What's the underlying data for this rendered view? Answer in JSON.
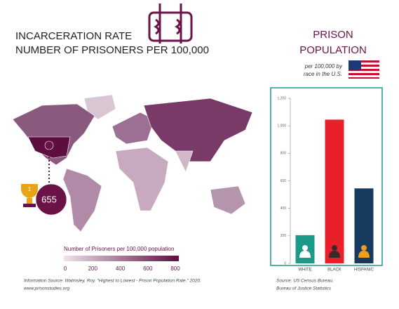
{
  "header": {
    "title_line1": "INCARCERATION RATE",
    "title_line2": "NUMBER OF PRISONERS PER 100,000"
  },
  "map": {
    "us_rank": "1",
    "us_rate": 655,
    "legend": {
      "title": "Number of Prisoners per 100,000 population",
      "xlim": [
        0,
        800
      ],
      "ticks": [
        0,
        200,
        400,
        600,
        800
      ]
    },
    "source_line1": "Information Source: Walmsley, Roy. \"Highest to Lowest - Prison Population Rate.\" 2020.",
    "source_line2": "www.prisonstudies.org"
  },
  "panel": {
    "title_line1": "PRISON",
    "title_line2": "POPULATION",
    "subtitle_line1": "per 100,000 by",
    "subtitle_line2": "race in the U.S.",
    "source_line1": "Source: US Census Bureau,",
    "source_line2": "Bureau of Justice Statistics"
  },
  "chart_data": {
    "type": "bar",
    "categories": [
      "WHITE",
      "BLACK",
      "HISPANIC"
    ],
    "values": [
      205,
      1045,
      545
    ],
    "colors": [
      "#1b9a8a",
      "#e8202a",
      "#173b5e"
    ],
    "ylim": [
      0,
      1200
    ],
    "yticks": [
      0,
      200,
      400,
      600,
      800,
      {
        "value": 1000,
        "label": "1,000"
      },
      {
        "value": 1200,
        "label": "1,200"
      }
    ]
  }
}
